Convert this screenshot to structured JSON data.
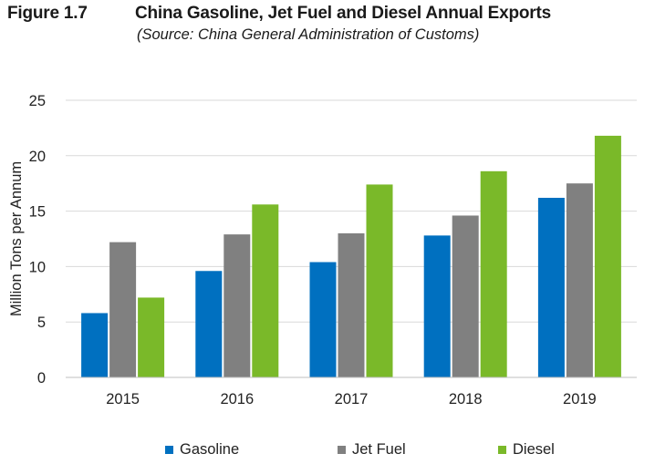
{
  "header": {
    "figure_number": "Figure 1.7",
    "title": "China Gasoline, Jet Fuel and Diesel Annual Exports",
    "source": "(Source: China General Administration of Customs)"
  },
  "chart_data": {
    "type": "bar",
    "title": "China Gasoline, Jet Fuel and Diesel Annual Exports",
    "subtitle": "(Source: China General Administration of Customs)",
    "xlabel": "",
    "ylabel": "Million Tons per Annum",
    "ylim": [
      0,
      25
    ],
    "yticks": [
      0,
      5,
      10,
      15,
      20,
      25
    ],
    "grid": true,
    "legend_position": "bottom",
    "categories": [
      "2015",
      "2016",
      "2017",
      "2018",
      "2019"
    ],
    "series": [
      {
        "name": "Gasoline",
        "color": "#0070C0",
        "values": [
          5.8,
          9.6,
          10.4,
          12.8,
          16.2
        ]
      },
      {
        "name": "Jet Fuel",
        "color": "#808080",
        "values": [
          12.2,
          12.9,
          13.0,
          14.6,
          17.5
        ]
      },
      {
        "name": "Diesel",
        "color": "#7AB929",
        "values": [
          7.2,
          15.6,
          17.4,
          18.6,
          21.8
        ]
      }
    ]
  }
}
